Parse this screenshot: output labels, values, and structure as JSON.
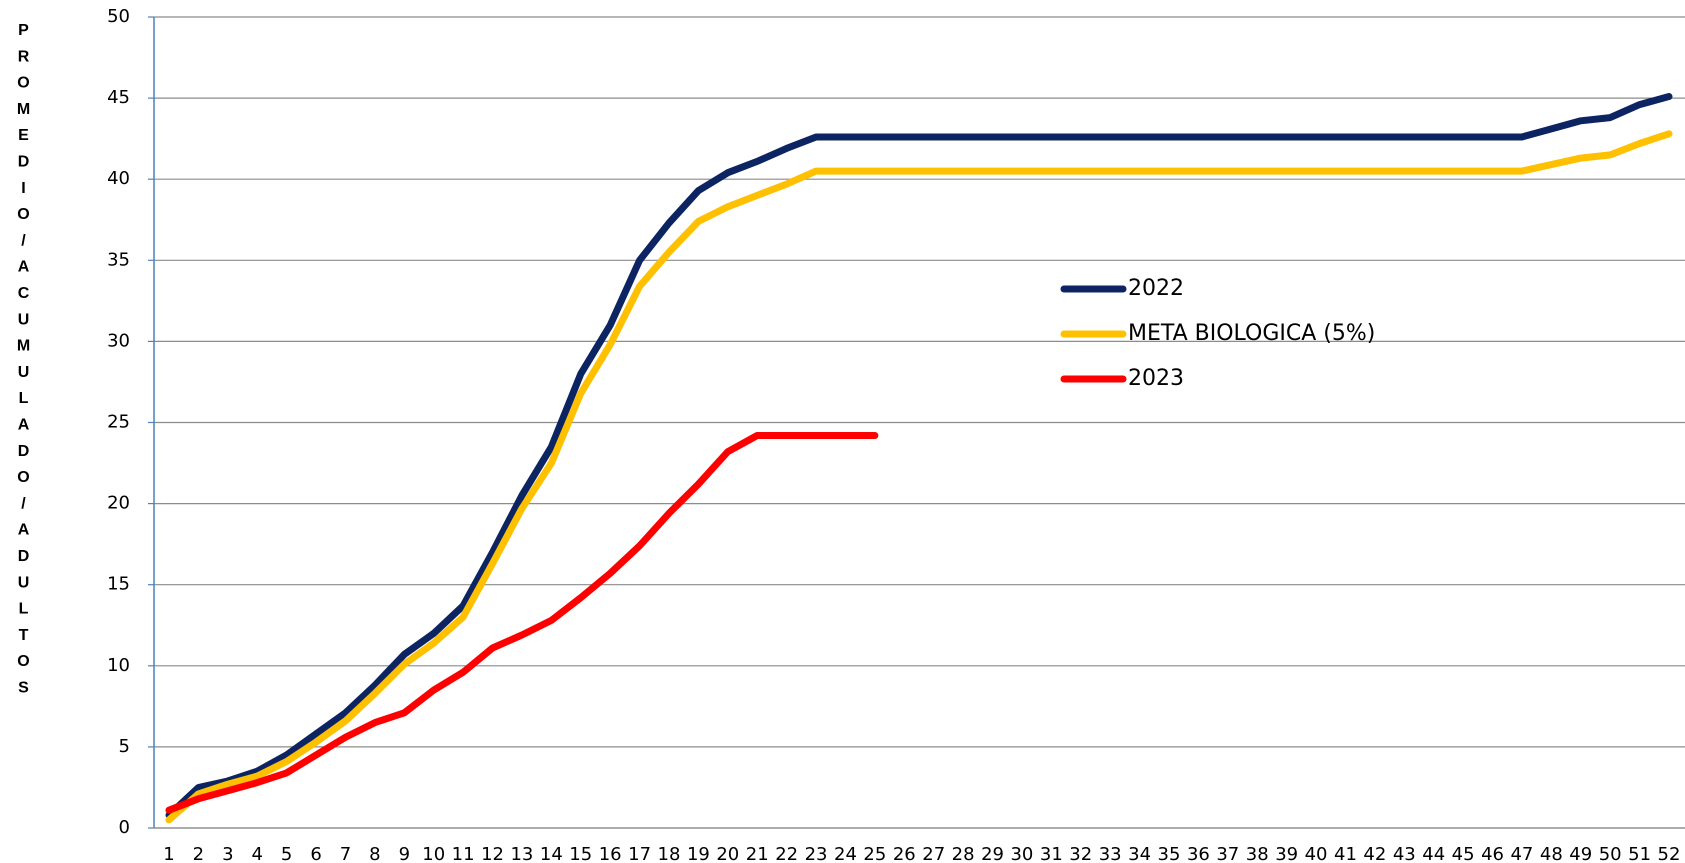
{
  "chart_data": {
    "type": "line",
    "y_label": "PROMEDIO/ACUMULADO/ADULTOS",
    "categories": [
      1,
      2,
      3,
      4,
      5,
      6,
      7,
      8,
      9,
      10,
      11,
      12,
      13,
      14,
      15,
      16,
      17,
      18,
      19,
      20,
      21,
      22,
      23,
      24,
      25,
      26,
      27,
      28,
      29,
      30,
      31,
      32,
      33,
      34,
      35,
      36,
      37,
      38,
      39,
      40,
      41,
      42,
      43,
      44,
      45,
      46,
      47,
      48,
      49,
      50,
      51,
      52
    ],
    "series": [
      {
        "name": "2022",
        "color": "#0c2461",
        "values": [
          0.8,
          2.5,
          2.9,
          3.5,
          4.5,
          5.8,
          7.1,
          8.8,
          10.7,
          12,
          13.7,
          17,
          20.5,
          23.5,
          28,
          31,
          35,
          37.3,
          39.3,
          40.4,
          41.1,
          41.9,
          42.6,
          42.6,
          42.6,
          42.6,
          42.6,
          42.6,
          42.6,
          42.6,
          42.6,
          42.6,
          42.6,
          42.6,
          42.6,
          42.6,
          42.6,
          42.6,
          42.6,
          42.6,
          42.6,
          42.6,
          42.6,
          42.6,
          42.6,
          42.6,
          42.6,
          43.1,
          43.6,
          43.8,
          44.6,
          45.1
        ]
      },
      {
        "name": "META BIOLOGICA (5%)",
        "color": "#ffc000",
        "values": [
          0.5,
          2.1,
          2.7,
          3.2,
          4.1,
          5.3,
          6.6,
          8.3,
          10.1,
          11.4,
          13,
          16.3,
          19.7,
          22.5,
          26.8,
          29.8,
          33.4,
          35.5,
          37.4,
          38.3,
          39,
          39.7,
          40.5,
          40.5,
          40.5,
          40.5,
          40.5,
          40.5,
          40.5,
          40.5,
          40.5,
          40.5,
          40.5,
          40.5,
          40.5,
          40.5,
          40.5,
          40.5,
          40.5,
          40.5,
          40.5,
          40.5,
          40.5,
          40.5,
          40.5,
          40.5,
          40.5,
          40.9,
          41.3,
          41.5,
          42.2,
          42.8
        ]
      },
      {
        "name": "2023",
        "color": "#ff0000",
        "values": [
          1.1,
          1.8,
          2.3,
          2.8,
          3.4,
          4.5,
          5.6,
          6.5,
          7.1,
          8.5,
          9.6,
          11.1,
          11.9,
          12.8,
          14.2,
          15.7,
          17.4,
          19.4,
          21.2,
          23.2,
          24.2,
          24.2,
          24.2,
          24.2,
          24.2,
          null,
          null,
          null,
          null,
          null,
          null,
          null,
          null,
          null,
          null,
          null,
          null,
          null,
          null,
          null,
          null,
          null,
          null,
          null,
          null,
          null,
          null,
          null,
          null,
          null,
          null,
          null
        ]
      }
    ],
    "ylim": [
      0,
      50
    ],
    "yticks": [
      0,
      5,
      10,
      15,
      20,
      25,
      30,
      35,
      40,
      45,
      50
    ],
    "grid": true
  }
}
